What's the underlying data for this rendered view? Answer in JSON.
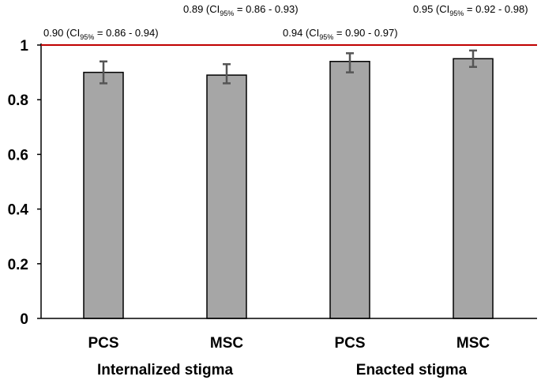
{
  "chart_data": {
    "type": "bar",
    "title": "",
    "xlabel": "",
    "ylabel": "",
    "ylim": [
      0,
      1
    ],
    "yticks": [
      "0",
      "0.2",
      "0.4",
      "0.6",
      "0.8",
      "1"
    ],
    "ytick_values": [
      0,
      0.2,
      0.4,
      0.6,
      0.8,
      1
    ],
    "reference_line": {
      "value": 1,
      "color": "#c00000"
    },
    "bar_color": "#a6a6a6",
    "categories": [
      "PCS",
      "MSC",
      "PCS",
      "MSC"
    ],
    "groups": [
      {
        "label": "Internalized stigma",
        "categories": [
          "PCS",
          "MSC"
        ]
      },
      {
        "label": "Enacted stigma",
        "categories": [
          "PCS",
          "MSC"
        ]
      }
    ],
    "values": [
      0.9,
      0.89,
      0.94,
      0.95
    ],
    "ci_lower": [
      0.86,
      0.86,
      0.9,
      0.92
    ],
    "ci_upper": [
      0.94,
      0.93,
      0.97,
      0.98
    ],
    "annotations": [
      {
        "pre": "0.90 (CI",
        "sub": "95%",
        "post": " = 0.86 - 0.94)"
      },
      {
        "pre": "0.89 (CI",
        "sub": "95%",
        "post": " = 0.86 - 0.93)"
      },
      {
        "pre": "0.94 (CI",
        "sub": "95%",
        "post": " = 0.90 - 0.97)"
      },
      {
        "pre": "0.95 (CI",
        "sub": "95%",
        "post": " = 0.92 - 0.98)"
      }
    ]
  }
}
